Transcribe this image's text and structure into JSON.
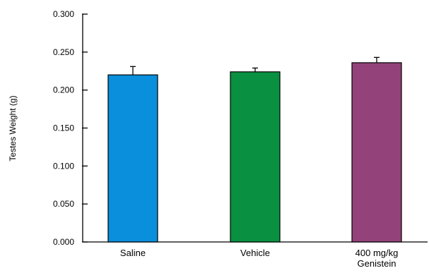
{
  "chart_data": {
    "type": "bar",
    "categories": [
      "Saline",
      "Vehicle",
      "400 mg/kg Genistein"
    ],
    "category_lines": [
      [
        "Saline"
      ],
      [
        "Vehicle"
      ],
      [
        "400 mg/kg",
        "Genistein"
      ]
    ],
    "values": [
      0.22,
      0.224,
      0.236
    ],
    "error_bars": [
      0.011,
      0.005,
      0.007
    ],
    "colors": [
      "#0a8fdc",
      "#0a9041",
      "#93437a"
    ],
    "ylabel": "Testes Weight (g)",
    "xlabel": "",
    "ylim": [
      0,
      0.3
    ],
    "yticks": [
      "0.000",
      "0.050",
      "0.100",
      "0.150",
      "0.200",
      "0.250",
      "0.300"
    ],
    "grid": false
  }
}
